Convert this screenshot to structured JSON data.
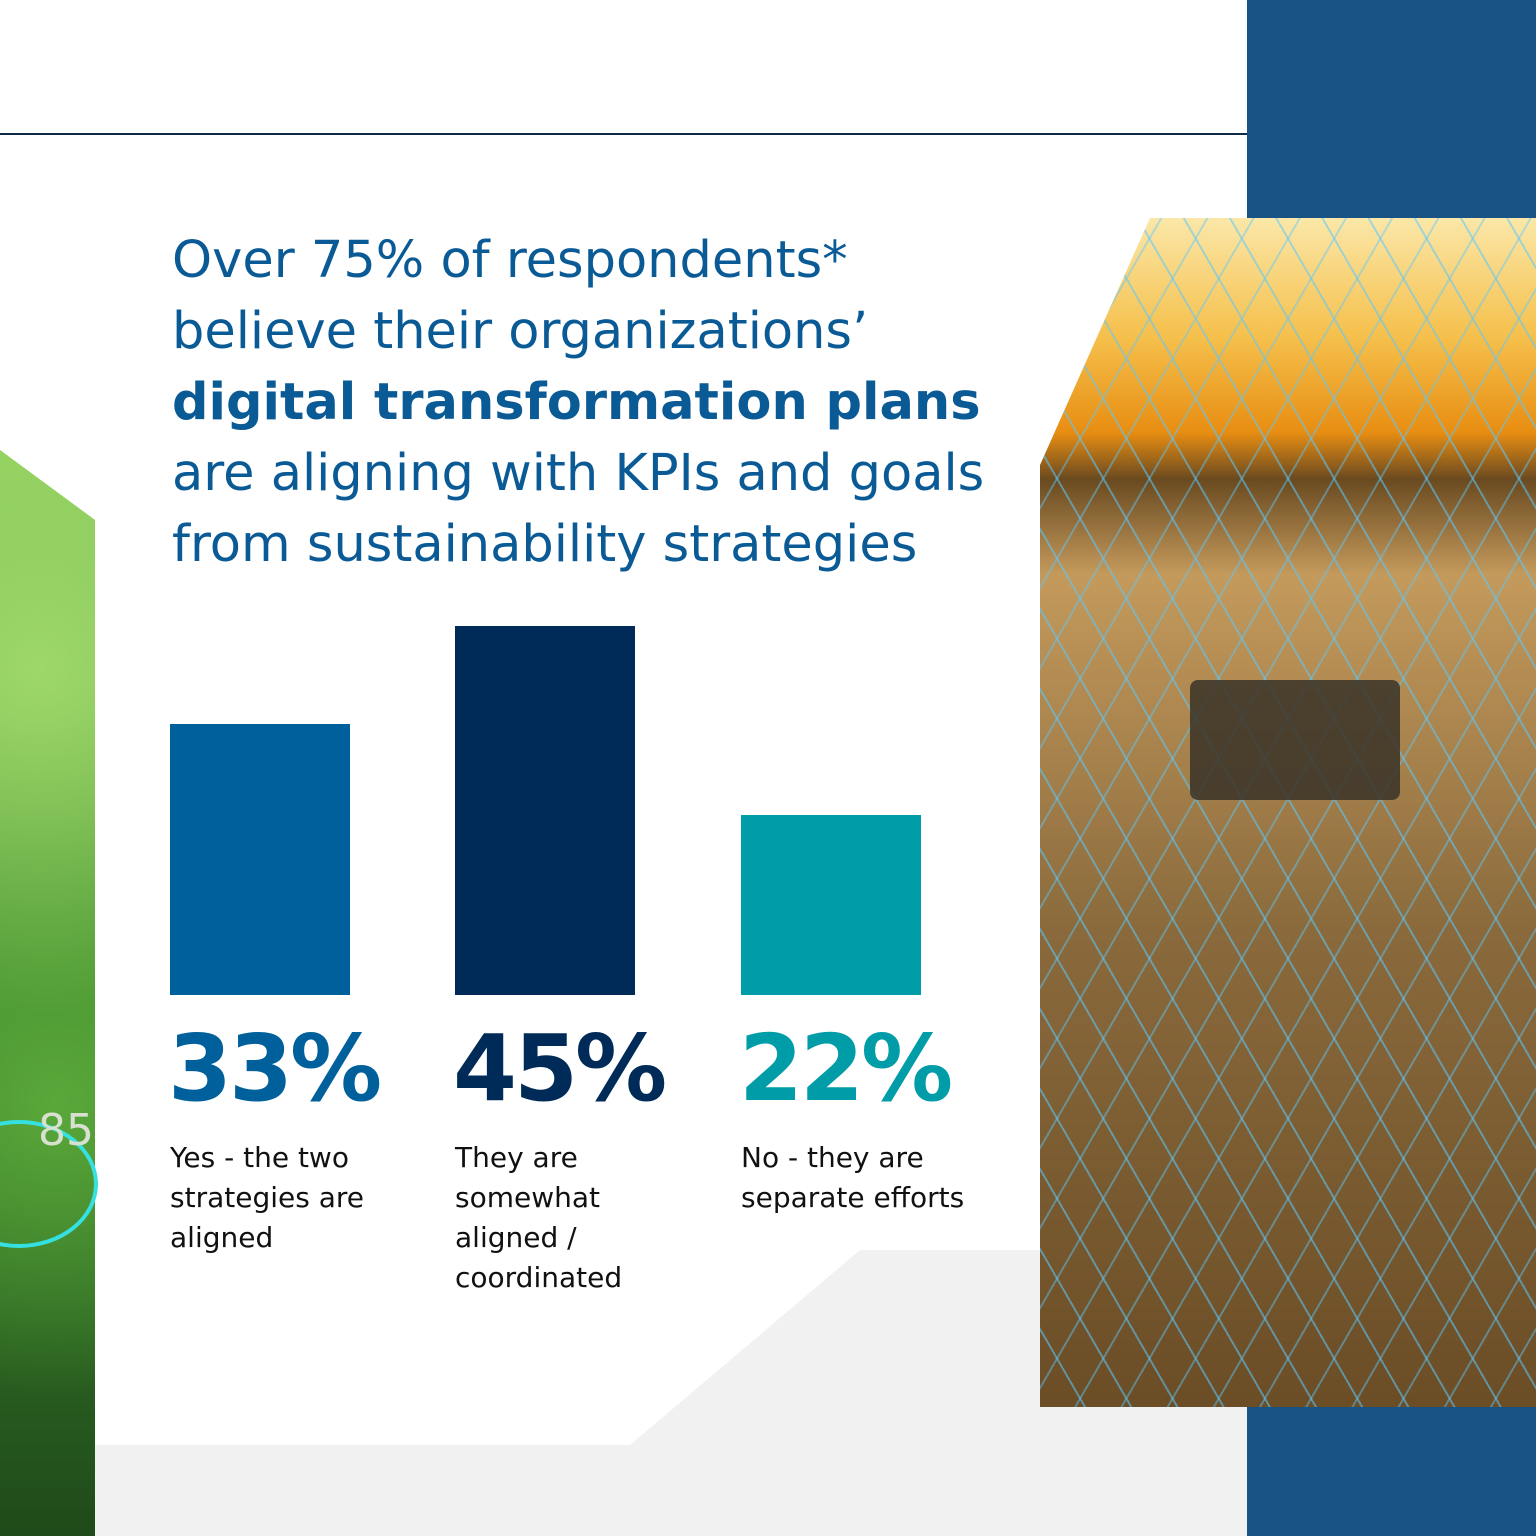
{
  "headline": {
    "line1": "Over 75% of respondents*",
    "line2": "believe their organizations’",
    "line3_bold": "digital transformation plans",
    "line4": "are aligning with KPIs and goals",
    "line5": "from sustainability strategies"
  },
  "photo_overlay_text": "85",
  "colors": {
    "title": "#0a5a96",
    "bar1": "#00609c",
    "bar2": "#002a57",
    "bar3": "#009ca8",
    "navy_panel": "#003f78"
  },
  "chart_data": {
    "type": "bar",
    "categories": [
      "Yes - the two strategies are aligned",
      "They are somewhat aligned / coordinated",
      "No - they are separate efforts"
    ],
    "values": [
      33,
      45,
      22
    ],
    "value_labels": [
      "33%",
      "45%",
      "22%"
    ],
    "ylim": [
      0,
      45
    ],
    "grid": false
  }
}
